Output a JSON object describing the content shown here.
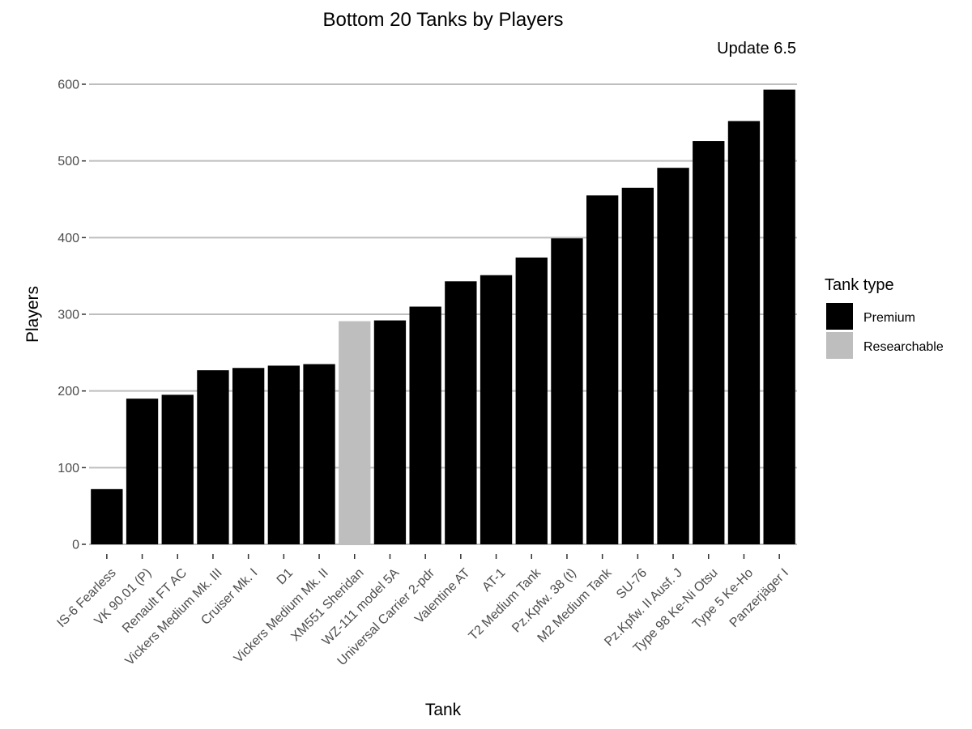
{
  "chart_data": {
    "type": "bar",
    "title": "Bottom 20 Tanks by Players",
    "subtitle": "Update 6.5",
    "xlabel": "Tank",
    "ylabel": "Players",
    "ylim": [
      0,
      600
    ],
    "yticks": [
      0,
      100,
      200,
      300,
      400,
      500,
      600
    ],
    "grid": true,
    "legend": {
      "title": "Tank type",
      "position": "right",
      "entries": [
        {
          "label": "Premium",
          "color": "#000000"
        },
        {
          "label": "Researchable",
          "color": "#bebebe"
        }
      ]
    },
    "categories": [
      "IS-6 Fearless",
      "VK 90.01 (P)",
      "Renault FT AC",
      "Vickers Medium Mk. III",
      "Cruiser Mk. I",
      "D1",
      "Vickers Medium Mk. II",
      "XM551 Sheridan",
      "WZ-111 model 5A",
      "Universal Carrier 2-pdr",
      "Valentine AT",
      "AT-1",
      "T2 Medium Tank",
      "Pz.Kpfw. 38 (t)",
      "M2 Medium Tank",
      "SU-76",
      "Pz.Kpfw. II Ausf. J",
      "Type 98 Ke-Ni Otsu",
      "Type 5 Ke-Ho",
      "Panzerjäger I"
    ],
    "values": [
      72,
      190,
      195,
      227,
      230,
      233,
      235,
      291,
      292,
      310,
      343,
      351,
      374,
      399,
      455,
      465,
      491,
      526,
      552,
      593
    ],
    "tank_type": [
      "Premium",
      "Premium",
      "Premium",
      "Premium",
      "Premium",
      "Premium",
      "Premium",
      "Researchable",
      "Premium",
      "Premium",
      "Premium",
      "Premium",
      "Premium",
      "Premium",
      "Premium",
      "Premium",
      "Premium",
      "Premium",
      "Premium",
      "Premium"
    ]
  }
}
